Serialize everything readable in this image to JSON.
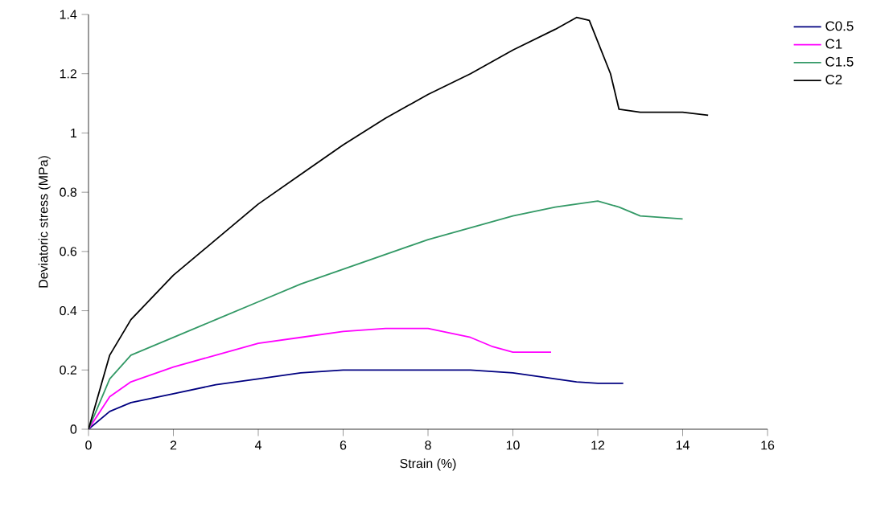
{
  "chart_data": {
    "type": "line",
    "xlabel": "Strain (%)",
    "ylabel": "Deviatoric stress (MPa)",
    "xlim": [
      0,
      16
    ],
    "ylim": [
      0,
      1.4
    ],
    "xticks": [
      0,
      2,
      4,
      6,
      8,
      10,
      12,
      14,
      16
    ],
    "yticks": [
      0,
      0.2,
      0.4,
      0.6,
      0.8,
      1,
      1.2,
      1.4
    ],
    "legend": "top right",
    "marker": "none",
    "line_style": "solid",
    "grid": false,
    "series": [
      {
        "name": "C0.5",
        "color": "#000080",
        "x": [
          0,
          0.5,
          1,
          2,
          3,
          4,
          5,
          6,
          7,
          8,
          9,
          10,
          11,
          11.5,
          12,
          12.6
        ],
        "values": [
          0,
          0.06,
          0.09,
          0.12,
          0.15,
          0.17,
          0.19,
          0.2,
          0.2,
          0.2,
          0.2,
          0.19,
          0.17,
          0.16,
          0.155,
          0.155
        ]
      },
      {
        "name": "C1",
        "color": "#ff00ff",
        "x": [
          0,
          0.5,
          1,
          2,
          3,
          4,
          5,
          6,
          7,
          8,
          9,
          9.5,
          10,
          10.9
        ],
        "values": [
          0,
          0.11,
          0.16,
          0.21,
          0.25,
          0.29,
          0.31,
          0.33,
          0.34,
          0.34,
          0.31,
          0.28,
          0.26,
          0.26
        ]
      },
      {
        "name": "C1.5",
        "color": "#339966",
        "x": [
          0,
          0.5,
          1,
          2,
          3,
          4,
          5,
          6,
          7,
          8,
          9,
          10,
          11,
          12,
          12.5,
          13,
          14
        ],
        "values": [
          0,
          0.17,
          0.25,
          0.31,
          0.37,
          0.43,
          0.49,
          0.54,
          0.59,
          0.64,
          0.68,
          0.72,
          0.75,
          0.77,
          0.75,
          0.72,
          0.71
        ]
      },
      {
        "name": "C2",
        "color": "#000000",
        "x": [
          0,
          0.5,
          1,
          2,
          3,
          4,
          5,
          6,
          7,
          8,
          9,
          10,
          11,
          11.5,
          11.8,
          12.3,
          12.5,
          13,
          14,
          14.6
        ],
        "values": [
          0,
          0.25,
          0.37,
          0.52,
          0.64,
          0.76,
          0.86,
          0.96,
          1.05,
          1.13,
          1.2,
          1.28,
          1.35,
          1.39,
          1.38,
          1.2,
          1.08,
          1.07,
          1.07,
          1.06
        ]
      }
    ]
  }
}
